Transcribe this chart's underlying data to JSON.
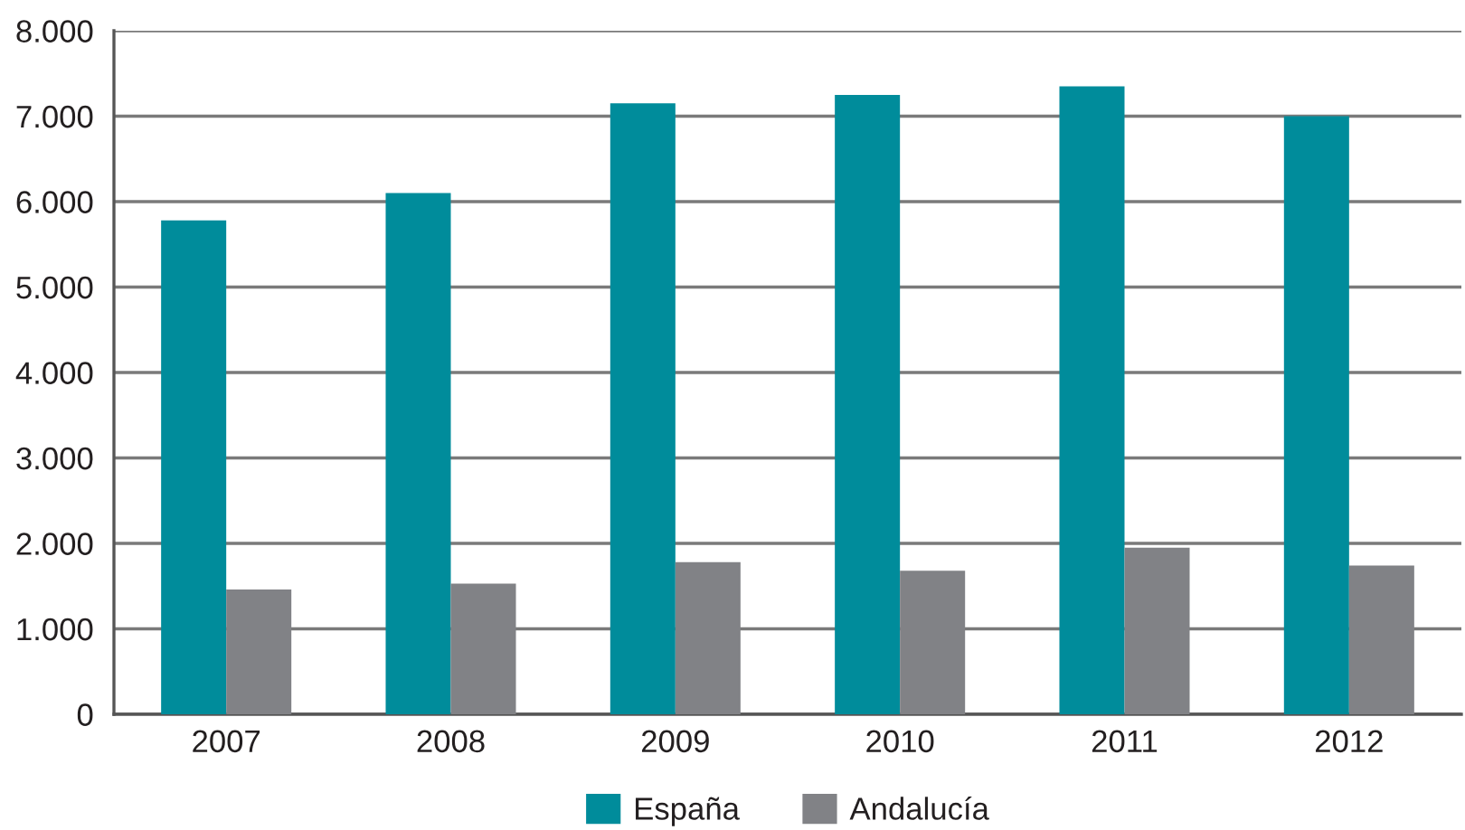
{
  "chart_data": {
    "type": "bar",
    "categories": [
      "2007",
      "2008",
      "2009",
      "2010",
      "2011",
      "2012"
    ],
    "series": [
      {
        "name": "España",
        "color": "#008c9b",
        "values": [
          5780,
          6100,
          7150,
          7250,
          7350,
          7000
        ]
      },
      {
        "name": "Andalucía",
        "color": "#818286",
        "values": [
          1460,
          1530,
          1780,
          1680,
          1950,
          1740
        ]
      }
    ],
    "ylim": [
      0,
      8000
    ],
    "yticks": [
      {
        "value": 0,
        "label": "0"
      },
      {
        "value": 1000,
        "label": "1.000"
      },
      {
        "value": 2000,
        "label": "2.000"
      },
      {
        "value": 3000,
        "label": "3.000"
      },
      {
        "value": 4000,
        "label": "4.000"
      },
      {
        "value": 5000,
        "label": "5.000"
      },
      {
        "value": 6000,
        "label": "6.000"
      },
      {
        "value": 7000,
        "label": "7.000"
      },
      {
        "value": 8000,
        "label": "8.000"
      }
    ],
    "grid": "y",
    "legend": "bottom"
  }
}
